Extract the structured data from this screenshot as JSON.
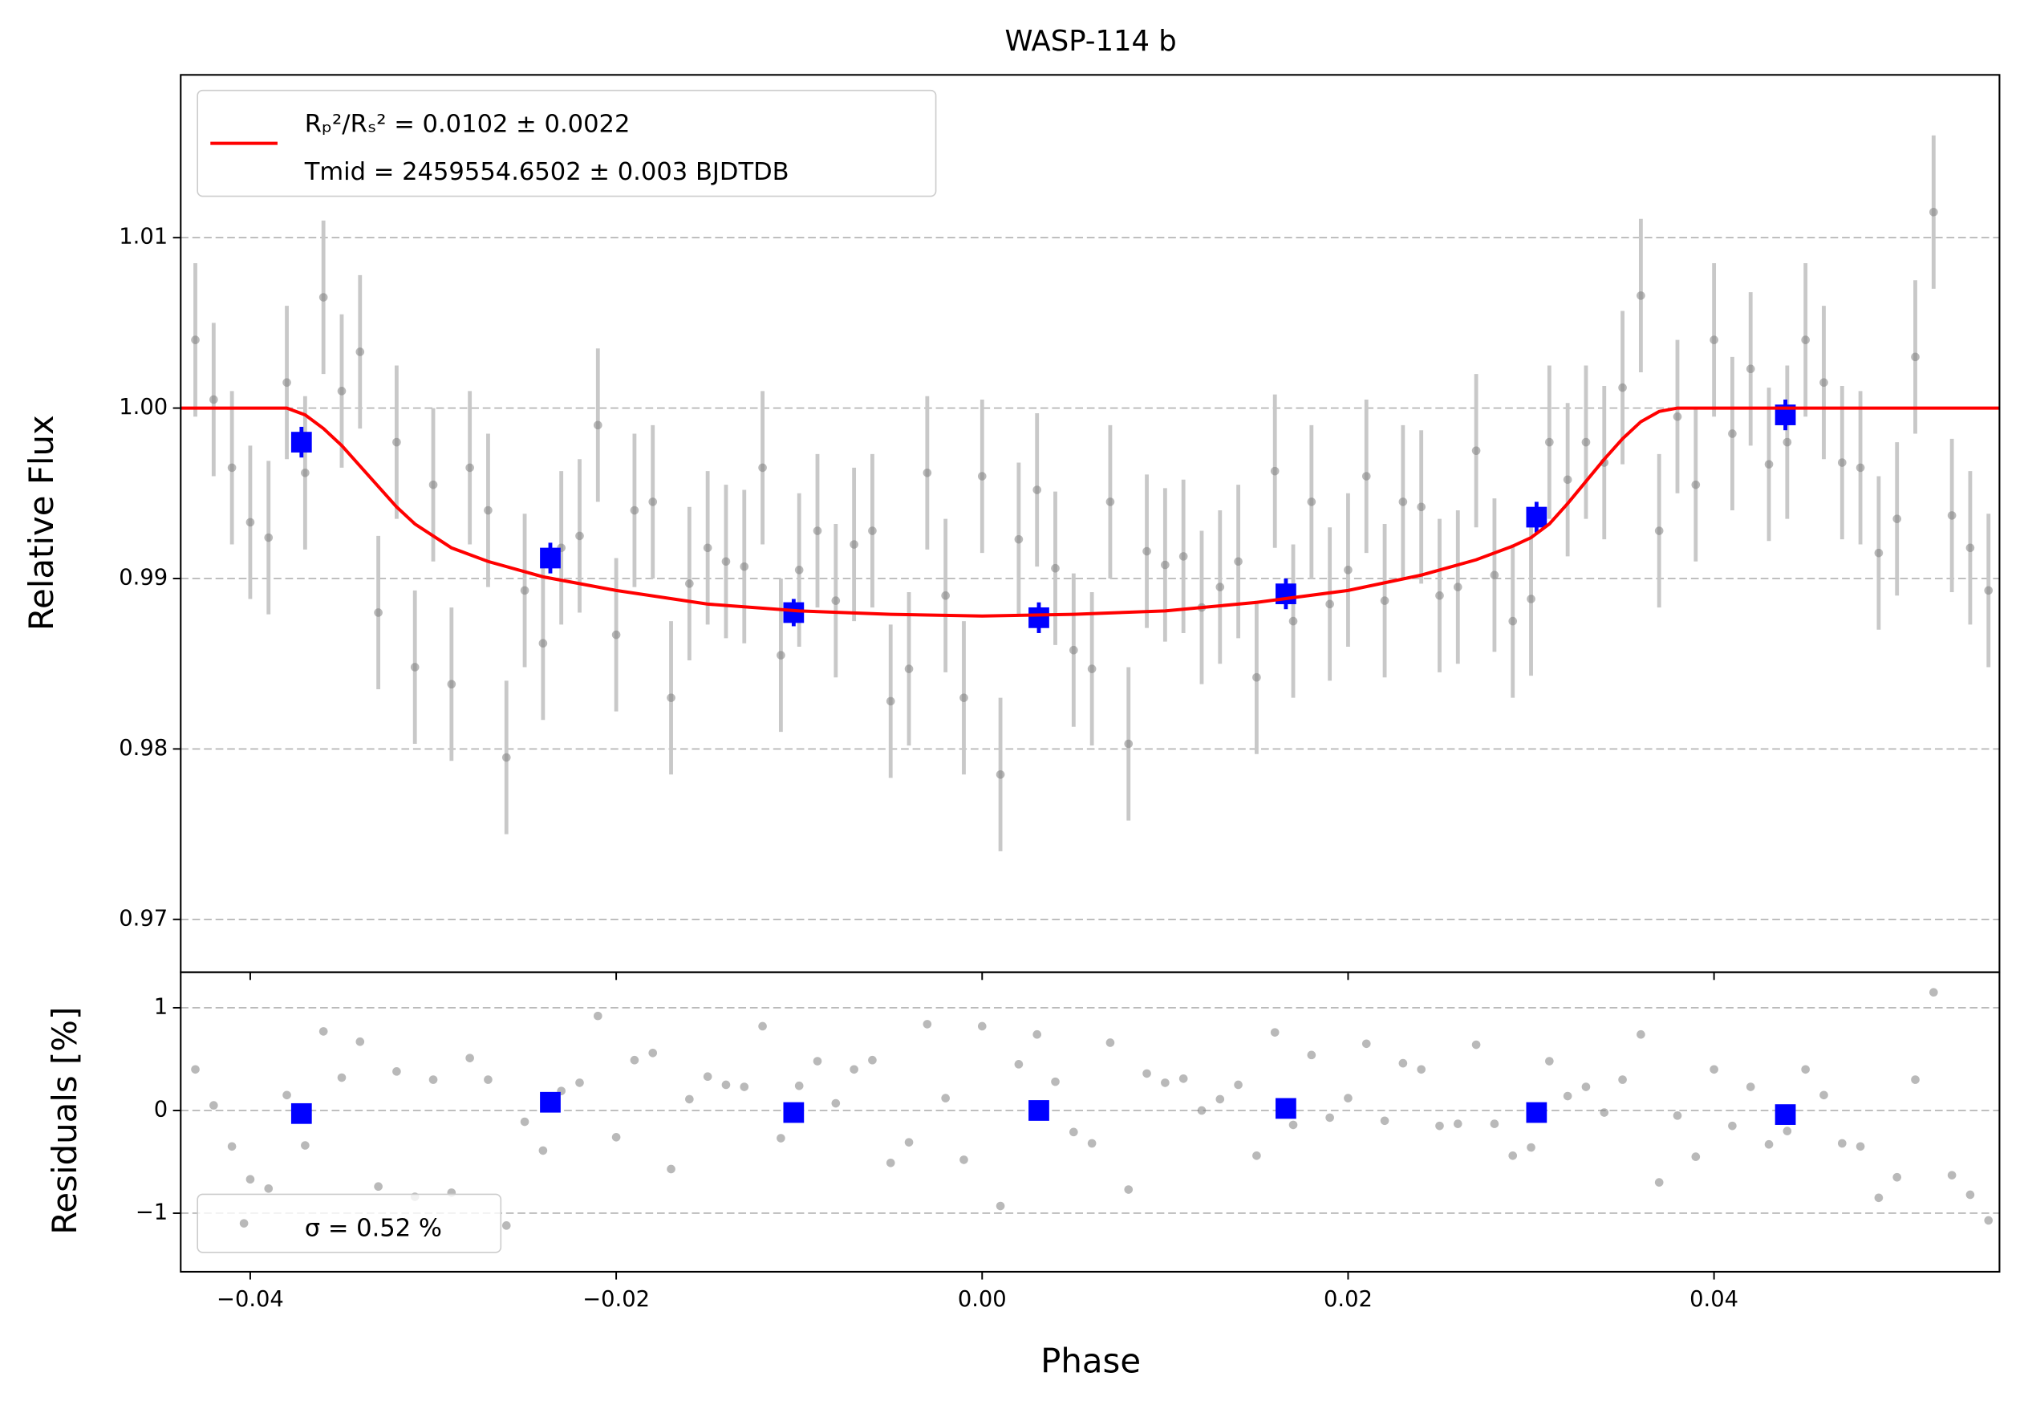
{
  "chart_data": [
    {
      "type": "scatter",
      "title": "WASP-114 b",
      "ylabel": "Relative Flux",
      "xlim": [
        -0.0438,
        0.0556
      ],
      "ylim": [
        0.9669,
        1.01955
      ],
      "xticks": [
        -0.04,
        -0.02,
        0,
        0.02,
        0.04
      ],
      "yticks": [
        0.97,
        0.98,
        0.99,
        {
          "value": 1,
          "label": "1.00"
        },
        1.01
      ],
      "grid": true,
      "series": [
        {
          "color": "#808080",
          "errcolor": "#c8c8c8",
          "x": [
            -0.043,
            -0.042,
            -0.041,
            -0.04,
            -0.039,
            -0.038,
            -0.037,
            -0.036,
            -0.035,
            -0.034,
            -0.033,
            -0.032,
            -0.031,
            -0.03,
            -0.029,
            -0.028,
            -0.027,
            -0.026,
            -0.025,
            -0.024,
            -0.023,
            -0.022,
            -0.021,
            -0.02,
            -0.019,
            -0.018,
            -0.017,
            -0.016,
            -0.015,
            -0.014,
            -0.013,
            -0.012,
            -0.011,
            -0.01,
            -0.009,
            -0.008,
            -0.007,
            -0.006,
            -0.005,
            -0.004,
            -0.003,
            -0.002,
            -0.001,
            0,
            0.001,
            0.002,
            0.003,
            0.004,
            0.005,
            0.006,
            0.007,
            0.008,
            0.009,
            0.01,
            0.011,
            0.012,
            0.013,
            0.014,
            0.015,
            0.016,
            0.017,
            0.018,
            0.019,
            0.02,
            0.021,
            0.022,
            0.023,
            0.024,
            0.025,
            0.026,
            0.027,
            0.028,
            0.029,
            0.03,
            0.031,
            0.032,
            0.033,
            0.034,
            0.035,
            0.036,
            0.037,
            0.038,
            0.039,
            0.04,
            0.041,
            0.042,
            0.043,
            0.044,
            0.045,
            0.046,
            0.047,
            0.048,
            0.049,
            0.05,
            0.051,
            0.052,
            0.053,
            0.054,
            0.055
          ],
          "values": [
            1.004,
            1.0005,
            0.9965,
            0.9933,
            0.9924,
            1.0015,
            0.9962,
            1.0065,
            1.001,
            1.0033,
            0.988,
            0.998,
            0.9848,
            0.9955,
            0.9838,
            0.9965,
            0.994,
            0.9795,
            0.9893,
            0.9862,
            0.9918,
            0.9925,
            0.999,
            0.9867,
            0.994,
            0.9945,
            0.983,
            0.9897,
            0.9918,
            0.991,
            0.9907,
            0.9965,
            0.9855,
            0.9905,
            0.9928,
            0.9887,
            0.992,
            0.9928,
            0.9828,
            0.9847,
            0.9962,
            0.989,
            0.983,
            0.996,
            0.9785,
            0.9923,
            0.9952,
            0.9906,
            0.9858,
            0.9847,
            0.9945,
            0.9803,
            0.9916,
            0.9908,
            0.9913,
            0.9883,
            0.9895,
            0.991,
            0.9842,
            0.9963,
            0.9875,
            0.9945,
            0.9885,
            0.9905,
            0.996,
            0.9887,
            0.9945,
            0.9942,
            0.989,
            0.9895,
            0.9975,
            0.9902,
            0.9875,
            0.9888,
            0.998,
            0.9958,
            0.998,
            0.9968,
            1.0012,
            1.0066,
            0.9928,
            0.9995,
            0.9955,
            1.004,
            0.9985,
            1.0023,
            0.9967,
            0.998,
            1.004,
            1.0015,
            0.9968,
            0.9965,
            0.9915,
            0.9935,
            1.003,
            1.0115,
            0.9937,
            0.9918,
            0.9893
          ],
          "errors": [
            0.0045,
            0.0045,
            0.0045,
            0.0045,
            0.0045,
            0.0045,
            0.0045,
            0.0045,
            0.0045,
            0.0045,
            0.0045,
            0.0045,
            0.0045,
            0.0045,
            0.0045,
            0.0045,
            0.0045,
            0.0045,
            0.0045,
            0.0045,
            0.0045,
            0.0045,
            0.0045,
            0.0045,
            0.0045,
            0.0045,
            0.0045,
            0.0045,
            0.0045,
            0.0045,
            0.0045,
            0.0045,
            0.0045,
            0.0045,
            0.0045,
            0.0045,
            0.0045,
            0.0045,
            0.0045,
            0.0045,
            0.0045,
            0.0045,
            0.0045,
            0.0045,
            0.0045,
            0.0045,
            0.0045,
            0.0045,
            0.0045,
            0.0045,
            0.0045,
            0.0045,
            0.0045,
            0.0045,
            0.0045,
            0.0045,
            0.0045,
            0.0045,
            0.0045,
            0.0045,
            0.0045,
            0.0045,
            0.0045,
            0.0045,
            0.0045,
            0.0045,
            0.0045,
            0.0045,
            0.0045,
            0.0045,
            0.0045,
            0.0045,
            0.0045,
            0.0045,
            0.0045,
            0.0045,
            0.0045,
            0.0045,
            0.0045,
            0.0045,
            0.0045,
            0.0045,
            0.0045,
            0.0045,
            0.0045,
            0.0045,
            0.0045,
            0.0045,
            0.0045,
            0.0045,
            0.0045,
            0.0045,
            0.0045,
            0.0045,
            0.0045,
            0.0045,
            0.0045,
            0.0045,
            0.0045
          ]
        },
        {
          "color": "#0000ff",
          "marker": "square",
          "x": [
            -0.0372,
            -0.0236,
            -0.0103,
            0.0031,
            0.0166,
            0.0303,
            0.0439
          ],
          "values": [
            0.998,
            0.9912,
            0.988,
            0.9877,
            0.9891,
            0.9936,
            0.9996
          ],
          "errors": [
            0.0009,
            0.0009,
            0.0008,
            0.0009,
            0.0009,
            0.0009,
            0.0009
          ]
        },
        {
          "name": [
            "Rₚ²/Rₛ² = 0.0102 ± 0.0022",
            "Tmid = 2459554.6502 ± 0.003 BJDTDB"
          ],
          "color": "#ff0000",
          "line": true,
          "x": [
            -0.0438,
            -0.038,
            -0.037,
            -0.036,
            -0.035,
            -0.034,
            -0.033,
            -0.032,
            -0.031,
            -0.03,
            -0.029,
            -0.027,
            -0.024,
            -0.02,
            -0.015,
            -0.01,
            -0.005,
            0,
            0.005,
            0.01,
            0.015,
            0.02,
            0.024,
            0.027,
            0.029,
            0.03,
            0.031,
            0.032,
            0.033,
            0.034,
            0.035,
            0.036,
            0.037,
            0.038,
            0.0556
          ],
          "values": [
            1,
            1,
            0.9996,
            0.9988,
            0.9978,
            0.9966,
            0.9954,
            0.9942,
            0.9932,
            0.9925,
            0.9918,
            0.991,
            0.9901,
            0.9893,
            0.9885,
            0.9881,
            0.9879,
            0.9878,
            0.9879,
            0.9881,
            0.9886,
            0.9893,
            0.9902,
            0.9911,
            0.9919,
            0.9924,
            0.9932,
            0.9944,
            0.9957,
            0.997,
            0.9982,
            0.9992,
            0.9998,
            1,
            1
          ]
        }
      ]
    },
    {
      "type": "scatter",
      "ylabel": "Residuals [%]",
      "xlabel": "Phase",
      "xlim": [
        -0.0438,
        0.0556
      ],
      "ylim": [
        -1.57,
        1.346
      ],
      "xticks": [
        {
          "value": -0.04,
          "label": "−0.04"
        },
        {
          "value": -0.02,
          "label": "−0.02"
        },
        {
          "value": 0,
          "label": "0.00"
        },
        0.02,
        0.04
      ],
      "yticks": [
        {
          "value": -1,
          "label": "−1"
        },
        0,
        1
      ],
      "grid": true,
      "series": [
        {
          "name": [
            "σ = 0.52 %"
          ],
          "color": "#808080",
          "x": [
            -0.043,
            -0.042,
            -0.041,
            -0.04,
            -0.039,
            -0.038,
            -0.037,
            -0.036,
            -0.035,
            -0.034,
            -0.033,
            -0.032,
            -0.031,
            -0.03,
            -0.029,
            -0.028,
            -0.027,
            -0.026,
            -0.025,
            -0.024,
            -0.023,
            -0.022,
            -0.021,
            -0.02,
            -0.019,
            -0.018,
            -0.017,
            -0.016,
            -0.015,
            -0.014,
            -0.013,
            -0.012,
            -0.011,
            -0.01,
            -0.009,
            -0.008,
            -0.007,
            -0.006,
            -0.005,
            -0.004,
            -0.003,
            -0.002,
            -0.001,
            0,
            0.001,
            0.002,
            0.003,
            0.004,
            0.005,
            0.006,
            0.007,
            0.008,
            0.009,
            0.01,
            0.011,
            0.012,
            0.013,
            0.014,
            0.015,
            0.016,
            0.017,
            0.018,
            0.019,
            0.02,
            0.021,
            0.022,
            0.023,
            0.024,
            0.025,
            0.026,
            0.027,
            0.028,
            0.029,
            0.03,
            0.031,
            0.032,
            0.033,
            0.034,
            0.035,
            0.036,
            0.037,
            0.038,
            0.039,
            0.04,
            0.041,
            0.042,
            0.043,
            0.044,
            0.045,
            0.046,
            0.047,
            0.048,
            0.049,
            0.05,
            0.051,
            0.052,
            0.053,
            0.054,
            0.055
          ],
          "values": [
            0.4,
            0.05,
            -0.35,
            -0.67,
            -0.76,
            0.15,
            -0.34,
            0.77,
            0.32,
            0.67,
            -0.74,
            0.38,
            -0.84,
            0.3,
            -0.8,
            0.51,
            0.3,
            -1.12,
            -0.11,
            -0.39,
            0.19,
            0.27,
            0.92,
            -0.26,
            0.49,
            0.56,
            -0.57,
            0.11,
            0.33,
            0.25,
            0.23,
            0.82,
            -0.27,
            0.24,
            0.48,
            0.07,
            0.4,
            0.49,
            -0.51,
            -0.31,
            0.84,
            0.12,
            -0.48,
            0.82,
            -0.93,
            0.45,
            0.74,
            0.28,
            -0.21,
            -0.32,
            0.66,
            -0.77,
            0.36,
            0.27,
            0.31,
            0,
            0.11,
            0.25,
            -0.44,
            0.76,
            -0.14,
            0.54,
            -0.07,
            0.12,
            0.65,
            -0.1,
            0.46,
            0.4,
            -0.15,
            -0.13,
            0.64,
            -0.13,
            -0.44,
            -0.36,
            0.48,
            0.14,
            0.23,
            -0.02,
            0.3,
            0.74,
            -0.7,
            -0.05,
            -0.45,
            0.4,
            -0.15,
            0.23,
            -0.33,
            -0.2,
            0.4,
            0.15,
            -0.32,
            -0.35,
            -0.85,
            -0.65,
            0.3,
            1.15,
            -0.63,
            -0.82,
            -1.07
          ]
        },
        {
          "color": "#0000ff",
          "marker": "square",
          "x": [
            -0.0372,
            -0.0236,
            -0.0103,
            0.0031,
            0.0166,
            0.0303,
            0.0439
          ],
          "values": [
            -0.03,
            0.08,
            -0.02,
            0,
            0.02,
            -0.02,
            -0.04
          ]
        }
      ]
    }
  ]
}
